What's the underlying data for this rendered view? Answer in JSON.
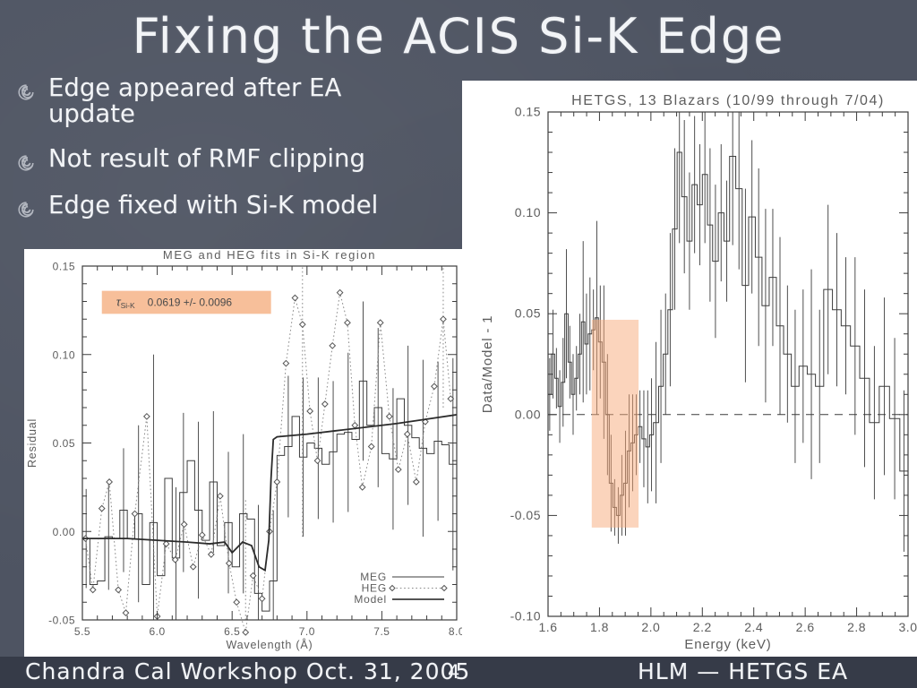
{
  "slide": {
    "title": "Fixing the ACIS Si-K Edge",
    "bullets": [
      "Edge appeared after EA update",
      "Not result of RMF clipping",
      "Edge fixed with Si-K model"
    ],
    "footer": {
      "left": "Chandra Cal Workshop Oct. 31, 2005",
      "page": "4",
      "right": "HLM — HETGS EA"
    }
  },
  "colors": {
    "background": "#4e5462",
    "chalk_text": "#f2f4f7",
    "footer_bg": "#363b48",
    "panel_bg": "#ffffff",
    "plot_line": "#3c3c3c",
    "plot_text": "#5d5d5d",
    "highlight": "#f7a979",
    "annotation_bg": "#f7bf9a"
  },
  "icons": {
    "bullet": "spiral-chalk-swirl"
  },
  "chart_data": [
    {
      "type": "line",
      "title": "MEG and HEG fits in Si-K region",
      "xlabel": "Wavelength (Å)",
      "ylabel": "Residual",
      "xlim": [
        5.5,
        8.0
      ],
      "ylim": [
        -0.05,
        0.15
      ],
      "grid": false,
      "xticks": {
        "values": [
          5.5,
          6.0,
          6.5,
          7.0,
          7.5,
          8.0
        ],
        "labels": [
          "5.5",
          "6.0",
          "6.5",
          "7.0",
          "7.5",
          "8.0"
        ],
        "minor": 0.1
      },
      "yticks": {
        "values": [
          -0.05,
          0.0,
          0.05,
          0.1,
          0.15
        ],
        "labels": [
          "-0.05",
          "0.00",
          "0.05",
          "0.10",
          "0.15"
        ],
        "minor": 0.01
      },
      "annotation": {
        "symbol": "τ",
        "sub": "Si-K",
        "value": "0.0619 +/-  0.0096",
        "box": {
          "x0": 5.63,
          "x1": 6.76,
          "y0": 0.123,
          "y1": 0.136
        }
      },
      "legend": [
        {
          "label": "MEG",
          "style": "solid"
        },
        {
          "label": "HEG",
          "style": "dotted-diamond"
        },
        {
          "label": "Model",
          "style": "solid"
        }
      ],
      "series": [
        {
          "name": "MEG",
          "type": "steps",
          "points": [
            [
              5.5,
              -0.004,
              0.028
            ],
            [
              5.55,
              -0.03,
              0
            ],
            [
              5.6,
              -0.028,
              0
            ],
            [
              5.65,
              -0.003,
              0.03
            ],
            [
              5.7,
              -0.004,
              0
            ],
            [
              5.75,
              0.012,
              0.035
            ],
            [
              5.8,
              -0.004,
              0
            ],
            [
              5.85,
              0.01,
              0.05
            ],
            [
              5.9,
              -0.03,
              0
            ],
            [
              5.95,
              0.005,
              0.095
            ],
            [
              6.0,
              -0.025,
              0
            ],
            [
              6.05,
              0.03,
              0
            ],
            [
              6.1,
              -0.015,
              0.04
            ],
            [
              6.15,
              0.022,
              0.045
            ],
            [
              6.2,
              0.04,
              0
            ],
            [
              6.25,
              0.012,
              0.05
            ],
            [
              6.3,
              -0.005,
              0
            ],
            [
              6.35,
              0.028,
              0.04
            ],
            [
              6.4,
              -0.008,
              0
            ],
            [
              6.45,
              0.005,
              0.04
            ],
            [
              6.5,
              -0.02,
              0
            ],
            [
              6.55,
              0.01,
              0.045
            ],
            [
              6.6,
              0.007,
              0
            ],
            [
              6.65,
              -0.035,
              0.05
            ],
            [
              6.7,
              -0.045,
              0
            ],
            [
              6.75,
              -0.028,
              0.04
            ],
            [
              6.8,
              0.043,
              0
            ],
            [
              6.85,
              0.048,
              0.04
            ],
            [
              6.9,
              0.065,
              0
            ],
            [
              6.95,
              0.042,
              0.045
            ],
            [
              7.0,
              0.05,
              0
            ],
            [
              7.05,
              0.047,
              0.04
            ],
            [
              7.1,
              0.038,
              0
            ],
            [
              7.15,
              0.045,
              0.04
            ],
            [
              7.2,
              0.055,
              0
            ],
            [
              7.25,
              0.056,
              0.045
            ],
            [
              7.3,
              0.052,
              0
            ],
            [
              7.35,
              0.085,
              0.045
            ],
            [
              7.4,
              0.06,
              0
            ],
            [
              7.45,
              0.07,
              0.045
            ],
            [
              7.5,
              0.044,
              0
            ],
            [
              7.55,
              0.041,
              0.04
            ],
            [
              7.6,
              0.075,
              0
            ],
            [
              7.65,
              0.06,
              0.045
            ],
            [
              7.7,
              0.053,
              0
            ],
            [
              7.75,
              0.047,
              0.05
            ],
            [
              7.8,
              0.044,
              0
            ],
            [
              7.85,
              0.051,
              0.045
            ],
            [
              7.9,
              0.049,
              0
            ],
            [
              7.95,
              0.038,
              0.06
            ]
          ]
        },
        {
          "name": "HEG",
          "type": "dotted-diamond",
          "points": [
            [
              5.52,
              -0.004
            ],
            [
              5.57,
              -0.033
            ],
            [
              5.63,
              0.013
            ],
            [
              5.68,
              0.028
            ],
            [
              5.74,
              -0.033
            ],
            [
              5.79,
              -0.046
            ],
            [
              5.85,
              0.01
            ],
            [
              5.93,
              0.065
            ],
            [
              6.0,
              -0.048
            ],
            [
              6.06,
              -0.007
            ],
            [
              6.12,
              -0.016
            ],
            [
              6.18,
              0.004
            ],
            [
              6.24,
              -0.02
            ],
            [
              6.3,
              -0.002
            ],
            [
              6.36,
              -0.013
            ],
            [
              6.42,
              0.02
            ],
            [
              6.48,
              -0.018
            ],
            [
              6.53,
              -0.04
            ],
            [
              6.59,
              -0.057,
              0.075
            ],
            [
              6.64,
              -0.025
            ],
            [
              6.7,
              -0.038
            ],
            [
              6.75,
              0.0
            ],
            [
              6.8,
              0.028
            ],
            [
              6.86,
              0.095
            ],
            [
              6.92,
              0.132
            ],
            [
              6.97,
              0.117,
              0.12
            ],
            [
              7.02,
              0.068
            ],
            [
              7.07,
              0.04
            ],
            [
              7.12,
              0.072
            ],
            [
              7.17,
              0.105
            ],
            [
              7.22,
              0.135
            ],
            [
              7.27,
              0.118
            ],
            [
              7.32,
              0.06
            ],
            [
              7.37,
              0.025
            ],
            [
              7.43,
              0.048
            ],
            [
              7.49,
              0.118
            ],
            [
              7.55,
              0.065
            ],
            [
              7.61,
              0.035
            ],
            [
              7.67,
              0.055
            ],
            [
              7.73,
              0.028
            ],
            [
              7.79,
              0.062
            ],
            [
              7.85,
              0.082
            ],
            [
              7.91,
              0.12,
              0.05
            ],
            [
              7.96,
              0.075
            ]
          ]
        },
        {
          "name": "Model",
          "type": "line",
          "points": [
            [
              5.5,
              -0.004
            ],
            [
              5.8,
              -0.004
            ],
            [
              6.0,
              -0.005
            ],
            [
              6.2,
              -0.006
            ],
            [
              6.35,
              -0.007
            ],
            [
              6.45,
              -0.006
            ],
            [
              6.5,
              -0.012
            ],
            [
              6.57,
              -0.006
            ],
            [
              6.63,
              -0.008
            ],
            [
              6.68,
              -0.02
            ],
            [
              6.72,
              -0.022
            ],
            [
              6.745,
              -0.005
            ],
            [
              6.76,
              0.03
            ],
            [
              6.775,
              0.052
            ],
            [
              6.8,
              0.0535
            ],
            [
              7.0,
              0.055
            ],
            [
              7.2,
              0.057
            ],
            [
              7.4,
              0.059
            ],
            [
              7.6,
              0.061
            ],
            [
              7.8,
              0.0635
            ],
            [
              8.0,
              0.066
            ]
          ]
        }
      ]
    },
    {
      "type": "bar",
      "title": "HETGS, 13 Blazars (10/99 through 7/04)",
      "xlabel": "Energy (keV)",
      "ylabel": "Data/Model - 1",
      "xlim": [
        1.6,
        3.0
      ],
      "ylim": [
        -0.1,
        0.15
      ],
      "grid": false,
      "zero_dashed": true,
      "xticks": {
        "values": [
          1.6,
          1.8,
          2.0,
          2.2,
          2.4,
          2.6,
          2.8,
          3.0
        ],
        "labels": [
          "1.6",
          "1.8",
          "2.0",
          "2.2",
          "2.4",
          "2.6",
          "2.8",
          "3.0"
        ],
        "minor": 0.05
      },
      "yticks": {
        "values": [
          -0.1,
          -0.05,
          0.0,
          0.05,
          0.1,
          0.15
        ],
        "labels": [
          "-0.10",
          "-0.05",
          "0.00",
          "0.05",
          "0.10",
          "0.15"
        ],
        "minor": 0.01
      },
      "highlight": {
        "x0": 1.77,
        "x1": 1.952,
        "y0": -0.056,
        "y1": 0.047
      },
      "series": [
        {
          "name": "residuals",
          "type": "steps",
          "points": [
            [
              1.6,
              0.01,
              0.018
            ],
            [
              1.613,
              0.03,
              0.022
            ],
            [
              1.626,
              0.018,
              0.015
            ],
            [
              1.639,
              0.004,
              0.018
            ],
            [
              1.652,
              0.016,
              0.022
            ],
            [
              1.665,
              0.05,
              0.032
            ],
            [
              1.678,
              0.026,
              0.018
            ],
            [
              1.691,
              0.01,
              0.02
            ],
            [
              1.704,
              0.018,
              0.016
            ],
            [
              1.717,
              0.03,
              0.02
            ],
            [
              1.73,
              0.046,
              0.04
            ],
            [
              1.743,
              0.035,
              0.025
            ],
            [
              1.756,
              0.04,
              0.028
            ],
            [
              1.77,
              0.042,
              0.02
            ],
            [
              1.783,
              0.048,
              0.048
            ],
            [
              1.796,
              0.036,
              0.028
            ],
            [
              1.81,
              0.026,
              0.038
            ],
            [
              1.824,
              0.0,
              0.03
            ],
            [
              1.838,
              -0.034,
              0.024
            ],
            [
              1.852,
              -0.046,
              0.014
            ],
            [
              1.866,
              -0.05,
              0.014
            ],
            [
              1.88,
              -0.04,
              0.02
            ],
            [
              1.894,
              -0.034,
              0.026
            ],
            [
              1.908,
              -0.018,
              0.028
            ],
            [
              1.922,
              -0.014,
              0.024
            ],
            [
              1.936,
              -0.01,
              0.02
            ],
            [
              1.95,
              -0.006,
              0.018
            ],
            [
              1.965,
              -0.012,
              0.024
            ],
            [
              1.98,
              -0.016,
              0.028
            ],
            [
              1.995,
              -0.01,
              0.028
            ],
            [
              2.01,
              -0.004,
              0.04
            ],
            [
              2.03,
              0.014,
              0.038
            ],
            [
              2.048,
              0.03,
              0.03
            ],
            [
              2.066,
              0.052,
              0.038
            ],
            [
              2.084,
              0.092,
              0.04
            ],
            [
              2.102,
              0.13,
              0.045
            ],
            [
              2.12,
              0.108,
              0.038
            ],
            [
              2.14,
              0.086,
              0.034
            ],
            [
              2.16,
              0.114,
              0.034
            ],
            [
              2.18,
              0.104,
              0.03
            ],
            [
              2.2,
              0.119,
              0.034
            ],
            [
              2.22,
              0.094,
              0.038
            ],
            [
              2.24,
              0.076,
              0.038
            ],
            [
              2.262,
              0.1,
              0.034
            ],
            [
              2.284,
              0.086,
              0.03
            ],
            [
              2.306,
              0.128,
              0.044
            ],
            [
              2.33,
              0.112,
              0.04
            ],
            [
              2.355,
              0.064,
              0.048
            ],
            [
              2.38,
              0.098,
              0.038
            ],
            [
              2.406,
              0.078,
              0.044
            ],
            [
              2.432,
              0.054,
              0.048
            ],
            [
              2.46,
              0.068,
              0.034
            ],
            [
              2.488,
              0.044,
              0.044
            ],
            [
              2.516,
              0.03,
              0.034
            ],
            [
              2.546,
              0.014,
              0.038
            ],
            [
              2.576,
              0.024,
              0.038
            ],
            [
              2.608,
              0.02,
              0.052
            ],
            [
              2.64,
              0.014,
              0.038
            ],
            [
              2.672,
              0.062,
              0.042
            ],
            [
              2.706,
              0.052,
              0.038
            ],
            [
              2.74,
              0.044,
              0.034
            ],
            [
              2.776,
              0.034,
              0.044
            ],
            [
              2.812,
              0.018,
              0.044
            ],
            [
              2.85,
              -0.004,
              0.038
            ],
            [
              2.888,
              0.014,
              0.044
            ],
            [
              2.928,
              -0.002,
              0.04
            ],
            [
              2.968,
              -0.028,
              0.04
            ]
          ]
        }
      ]
    }
  ]
}
